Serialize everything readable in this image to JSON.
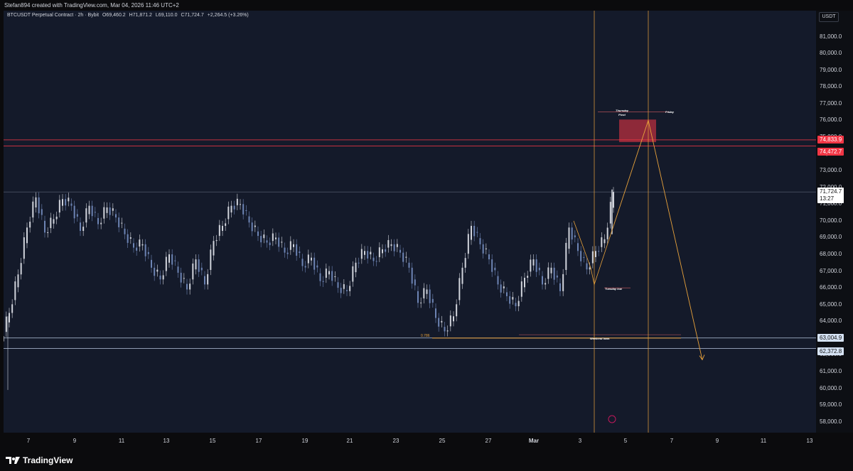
{
  "header": {
    "credit": "Stefan894 created with TradingView.com, Mar 04, 2026 11:46 UTC+2"
  },
  "legend": {
    "symbol": "BTCUSDT Perpetual Contract · 2h · Bybit",
    "open": "O69,460.2",
    "high": "H71,871.2",
    "low": "L69,110.0",
    "close": "C71,724.7",
    "change": "+2,264.5 (+3.26%)"
  },
  "price_axis": {
    "unit": "USDT",
    "ticks": [
      "81,000.0",
      "80,000.0",
      "79,000.0",
      "78,000.0",
      "77,000.0",
      "76,000.0",
      "75,000.0",
      "74,000.0",
      "73,000.0",
      "72,000.0",
      "71,000.0",
      "70,000.0",
      "69,000.0",
      "68,000.0",
      "67,000.0",
      "66,000.0",
      "65,000.0",
      "64,000.0",
      "63,000.0",
      "62,000.0",
      "61,000.0",
      "60,000.0",
      "59,000.0",
      "58,000.0"
    ]
  },
  "time_axis": {
    "ticks": [
      {
        "label": "7"
      },
      {
        "label": "9"
      },
      {
        "label": "11"
      },
      {
        "label": "13"
      },
      {
        "label": "15"
      },
      {
        "label": "17"
      },
      {
        "label": "19"
      },
      {
        "label": "21"
      },
      {
        "label": "23"
      },
      {
        "label": "25"
      },
      {
        "label": "27"
      },
      {
        "label": "Mar",
        "bold": true
      },
      {
        "label": "3"
      },
      {
        "label": "5"
      },
      {
        "label": "7"
      },
      {
        "label": "9"
      },
      {
        "label": "11"
      },
      {
        "label": "13"
      }
    ]
  },
  "badges": {
    "red_upper": "74,833.9",
    "red_lower": "74,472.7",
    "last_price": "71,724.7",
    "countdown": "13:27",
    "level_upper": "63,004.9",
    "level_lower": "62,372.8"
  },
  "annotations": {
    "thursday": "Thursday",
    "pivot": "Pivot",
    "friday": "Friday",
    "tuesday_low": "Tuesday low",
    "weekend_lows": "Weekend lows",
    "fib_label": "0.786"
  },
  "colors": {
    "up_candle": "#d1d4dc",
    "down_candle": "#6d84b4",
    "red_zone": "#f23645",
    "projection": "#e8a23b",
    "background": "#141a2a"
  },
  "footer": {
    "brand": "TradingView",
    "logo_icon": "tradingview-logo-icon"
  },
  "chart_data": {
    "type": "candlestick",
    "title": "",
    "ylim": [
      57500,
      82000
    ],
    "series": [
      {
        "name": "",
        "values": [
          64500,
          66800,
          69600,
          71400,
          69300,
          70100,
          71300,
          70900,
          69400,
          70900,
          69800,
          70800,
          70200,
          69200,
          68400,
          68600,
          67200,
          66500,
          68000,
          66900,
          65900,
          67700,
          66200,
          68800,
          69700,
          70900,
          71000,
          69900,
          69100,
          68700,
          69000,
          68100,
          68600,
          67300,
          67800,
          66400,
          67000,
          66000,
          65800,
          67500,
          68200,
          67600,
          68300,
          68600,
          68100,
          67200,
          65100,
          65900,
          64200,
          63400,
          64300,
          67200,
          69700,
          68600,
          67700,
          66200,
          65500,
          64900,
          66600,
          67700,
          66200,
          67200,
          65800,
          69600,
          68200,
          67100,
          68200,
          68900,
          71725
        ]
      }
    ],
    "levels": {
      "red_zone_upper": 74833.9,
      "red_zone_lower": 74472.7,
      "support_upper": 63004.9,
      "support_lower": 62372.8
    },
    "projection_path": [
      {
        "x": "Mar 4",
        "y": 69300
      },
      {
        "x": "Mar 6",
        "y": 76000
      },
      {
        "x": "Mar 8",
        "y": 61700
      }
    ]
  }
}
